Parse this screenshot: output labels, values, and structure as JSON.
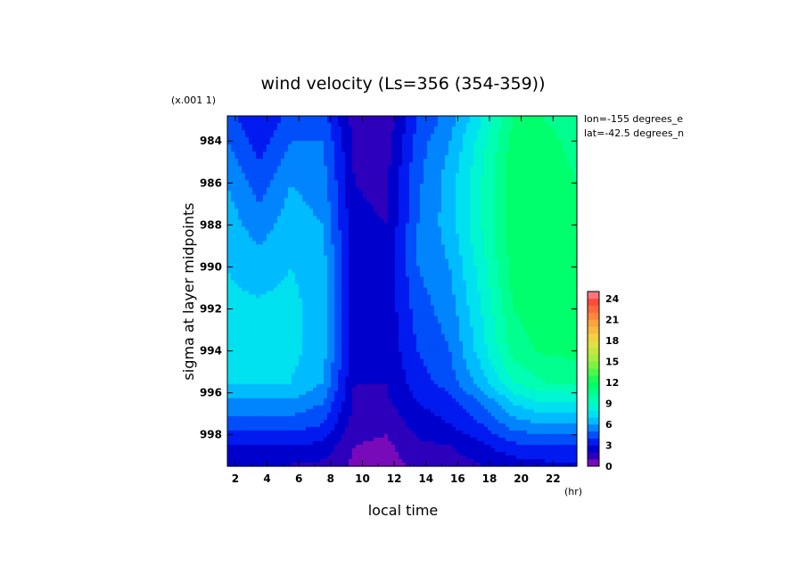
{
  "chart_data": {
    "type": "heatmap",
    "subtype": "filled-contour",
    "title": "wind velocity (Ls=356 (354-359))",
    "xlabel": "local time",
    "x_unit": "(hr)",
    "ylabel": "sigma at layer midpoints",
    "y_scale_note": "(x.001 1)",
    "annotations": [
      "lon=-155 degrees_e",
      "lat=-42.5 degrees_n"
    ],
    "xlim": [
      1.5,
      23.5
    ],
    "ylim": [
      999.5,
      982.8
    ],
    "x_ticks": [
      "2",
      "4",
      "6",
      "8",
      "10",
      "12",
      "14",
      "16",
      "18",
      "20",
      "22"
    ],
    "y_ticks": [
      "984",
      "986",
      "988",
      "990",
      "992",
      "994",
      "996",
      "998"
    ],
    "colorbar": {
      "min": 0,
      "max": 25,
      "step": 1,
      "tick_labels": [
        "0",
        "3",
        "6",
        "9",
        "12",
        "15",
        "18",
        "21",
        "24"
      ]
    },
    "x": [
      1.5,
      3.5,
      5.5,
      7.5,
      9.5,
      11.5,
      13.5,
      15.5,
      17.5,
      19.5,
      21.5,
      23.5
    ],
    "y": [
      983,
      984,
      986,
      988,
      990,
      992,
      994,
      995.5,
      996.5,
      997.5,
      998.5,
      999.4
    ],
    "z": [
      [
        4.5,
        3.0,
        4.5,
        4.5,
        1.5,
        1.2,
        4.0,
        5.5,
        8.0,
        11.0,
        11.0,
        10.0
      ],
      [
        5.0,
        3.5,
        5.0,
        5.0,
        1.8,
        1.5,
        4.5,
        6.0,
        8.5,
        11.5,
        11.5,
        10.5
      ],
      [
        6.0,
        4.5,
        6.0,
        5.5,
        2.0,
        1.8,
        4.8,
        6.5,
        9.0,
        11.7,
        11.8,
        11.0
      ],
      [
        6.5,
        5.5,
        6.5,
        6.0,
        2.2,
        2.0,
        5.0,
        6.5,
        9.0,
        11.7,
        12.0,
        11.5
      ],
      [
        7.0,
        6.5,
        7.0,
        6.5,
        2.3,
        2.2,
        5.0,
        6.0,
        8.5,
        11.5,
        12.0,
        11.8
      ],
      [
        7.2,
        7.2,
        7.3,
        6.5,
        2.3,
        2.3,
        4.5,
        5.5,
        8.0,
        11.0,
        11.7,
        11.7
      ],
      [
        7.3,
        7.4,
        7.3,
        6.5,
        2.2,
        2.2,
        4.0,
        5.0,
        7.5,
        10.5,
        11.2,
        11.3
      ],
      [
        7.0,
        7.0,
        7.0,
        6.0,
        2.0,
        2.0,
        3.5,
        4.5,
        6.5,
        9.0,
        10.0,
        10.0
      ],
      [
        5.8,
        5.8,
        5.8,
        5.0,
        1.8,
        1.8,
        3.0,
        3.5,
        5.0,
        7.0,
        8.0,
        8.0
      ],
      [
        4.5,
        4.5,
        4.5,
        4.0,
        1.5,
        1.2,
        2.5,
        3.0,
        4.0,
        5.5,
        6.0,
        6.0
      ],
      [
        3.0,
        3.0,
        3.0,
        2.8,
        1.0,
        0.8,
        1.8,
        2.0,
        2.8,
        3.8,
        4.0,
        4.0
      ],
      [
        2.0,
        2.0,
        2.0,
        1.8,
        0.8,
        0.6,
        1.2,
        1.5,
        2.0,
        2.5,
        2.8,
        2.8
      ]
    ]
  }
}
